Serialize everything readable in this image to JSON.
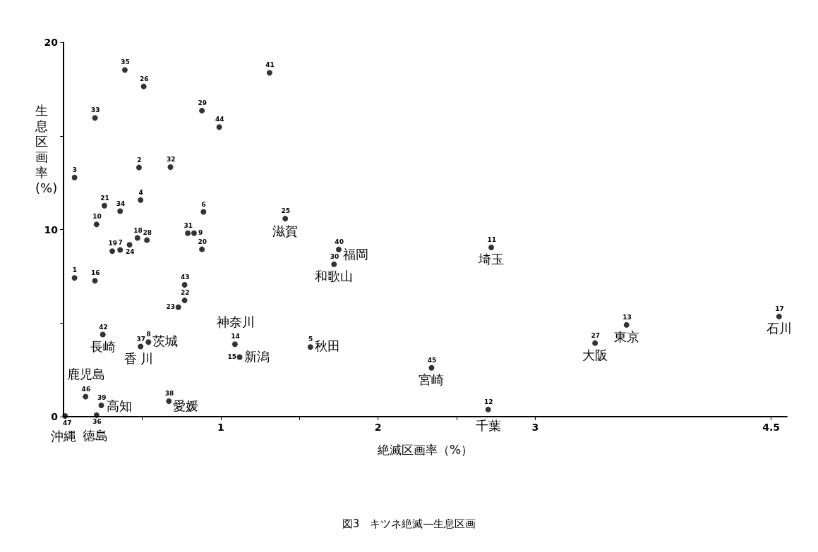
{
  "chart_data": {
    "type": "scatter",
    "xlabel": "絶滅区画率（%）",
    "ylabel": "生息区画率(%)",
    "annotations": [
      "図3　キツネ絶滅—生息区画",
      {
        "text": "35",
        "x": 0.39,
        "y": 18.52
      },
      {
        "text": "26",
        "x": 0.51,
        "y": 17.64
      },
      {
        "text": "33",
        "x": 0.2,
        "y": 15.96
      },
      {
        "text": "29",
        "x": 0.88,
        "y": 16.35
      },
      {
        "text": "44",
        "x": 0.99,
        "y": 15.47
      },
      {
        "text": "3",
        "x": 0.07,
        "y": 12.78
      },
      {
        "text": "2",
        "x": 0.48,
        "y": 13.31
      },
      {
        "text": "32",
        "x": 0.68,
        "y": 13.33
      },
      {
        "text": "4",
        "x": 0.49,
        "y": 11.57
      },
      {
        "text": "21",
        "x": 0.26,
        "y": 11.27
      },
      {
        "text": "34",
        "x": 0.36,
        "y": 10.98
      },
      {
        "text": "6",
        "x": 0.89,
        "y": 10.94
      },
      {
        "text": "10",
        "x": 0.21,
        "y": 10.27
      },
      {
        "text": "31",
        "x": 0.79,
        "y": 9.8
      },
      {
        "text": "9",
        "x": 0.83,
        "y": 9.8
      },
      {
        "text": "18",
        "x": 0.47,
        "y": 9.55
      },
      {
        "text": "28",
        "x": 0.53,
        "y": 9.43
      },
      {
        "text": "24",
        "x": 0.42,
        "y": 9.18
      },
      {
        "text": "7",
        "x": 0.36,
        "y": 8.91
      },
      {
        "text": "19",
        "x": 0.31,
        "y": 8.84
      },
      {
        "text": "20",
        "x": 0.88,
        "y": 8.94
      },
      {
        "text": "41",
        "x": 1.31,
        "y": 18.37
      },
      {
        "text": "25",
        "x": 1.41,
        "y": 10.58
      },
      {
        "text": "1",
        "x": 0.07,
        "y": 7.41
      },
      {
        "text": "16",
        "x": 0.2,
        "y": 7.26
      },
      {
        "text": "43",
        "x": 0.77,
        "y": 7.04
      },
      {
        "text": "22",
        "x": 0.77,
        "y": 6.21
      },
      {
        "text": "23",
        "x": 0.73,
        "y": 5.85
      },
      {
        "text": "42",
        "x": 0.25,
        "y": 4.39
      },
      {
        "text": "8",
        "x": 0.54,
        "y": 3.98
      },
      {
        "text": "37",
        "x": 0.49,
        "y": 3.75
      },
      {
        "text": "46",
        "x": 0.14,
        "y": 1.07
      },
      {
        "text": "38",
        "x": 0.67,
        "y": 0.83
      },
      {
        "text": "39",
        "x": 0.24,
        "y": 0.6
      },
      {
        "text": "36",
        "x": 0.21,
        "y": 0.08
      },
      {
        "text": "47",
        "x": 0.01,
        "y": 0.04
      },
      {
        "text": "40",
        "x": 1.75,
        "y": 8.93
      },
      {
        "text": "30",
        "x": 1.72,
        "y": 8.14
      },
      {
        "text": "14",
        "x": 1.09,
        "y": 3.87
      },
      {
        "text": "15",
        "x": 1.12,
        "y": 3.18
      },
      {
        "text": "5",
        "x": 1.57,
        "y": 3.72
      },
      {
        "text": "11",
        "x": 2.72,
        "y": 9.04
      },
      {
        "text": "45",
        "x": 2.34,
        "y": 2.61
      },
      {
        "text": "12",
        "x": 2.7,
        "y": 0.38
      },
      {
        "text": "27",
        "x": 3.38,
        "y": 3.93
      },
      {
        "text": "13",
        "x": 3.58,
        "y": 4.9
      },
      {
        "text": "17",
        "x": 4.55,
        "y": 5.35
      },
      {
        "text": "滋賀",
        "x": 1.41,
        "y": 10.58
      },
      {
        "text": "福岡",
        "x": 1.75,
        "y": 8.93
      },
      {
        "text": "和歌山",
        "x": 1.72,
        "y": 8.14
      },
      {
        "text": "埼玉",
        "x": 2.72,
        "y": 9.04
      },
      {
        "text": "石川",
        "x": 4.55,
        "y": 5.35
      },
      {
        "text": "大阪",
        "x": 3.38,
        "y": 3.93
      },
      {
        "text": "東京",
        "x": 3.58,
        "y": 4.9
      },
      {
        "text": "長崎",
        "x": 0.25,
        "y": 4.39
      },
      {
        "text": "茨城",
        "x": 0.54,
        "y": 3.98
      },
      {
        "text": "香 川",
        "x": 0.49,
        "y": 3.75
      },
      {
        "text": "神奈川",
        "x": 1.09,
        "y": 3.87
      },
      {
        "text": "新潟",
        "x": 1.12,
        "y": 3.18
      },
      {
        "text": "秋田",
        "x": 1.57,
        "y": 3.72
      },
      {
        "text": "宮崎",
        "x": 2.34,
        "y": 2.61
      },
      {
        "text": "鹿児島",
        "x": 0.14,
        "y": 1.07
      },
      {
        "text": "高知",
        "x": 0.24,
        "y": 0.6
      },
      {
        "text": "愛媛",
        "x": 0.67,
        "y": 0.83
      },
      {
        "text": "千葉",
        "x": 2.7,
        "y": 0.38
      },
      {
        "text": "沖縄",
        "x": 0.01,
        "y": 0.04
      },
      {
        "text": "徳島",
        "x": 0.21,
        "y": 0.08
      }
    ],
    "x": [
      0.39,
      0.51,
      0.2,
      0.88,
      0.99,
      0.07,
      0.48,
      0.68,
      0.49,
      0.26,
      0.36,
      0.89,
      0.21,
      0.79,
      0.83,
      0.47,
      0.53,
      0.42,
      0.36,
      0.31,
      0.88,
      1.31,
      1.41,
      0.07,
      0.2,
      0.77,
      0.77,
      0.73,
      0.25,
      0.54,
      0.49,
      0.14,
      0.67,
      0.24,
      0.21,
      0.01,
      1.75,
      1.72,
      1.09,
      1.12,
      1.57,
      2.72,
      2.34,
      2.7,
      3.38,
      3.58,
      4.55
    ],
    "values": [
      18.52,
      17.64,
      15.96,
      16.35,
      15.47,
      12.78,
      13.31,
      13.33,
      11.57,
      11.27,
      10.98,
      10.94,
      10.27,
      9.8,
      9.8,
      9.55,
      9.43,
      9.18,
      8.91,
      8.84,
      8.94,
      18.37,
      10.58,
      7.41,
      7.26,
      7.04,
      6.21,
      5.85,
      4.39,
      3.98,
      3.75,
      1.07,
      0.83,
      0.6,
      0.08,
      0.04,
      8.93,
      8.14,
      3.87,
      3.18,
      3.72,
      9.04,
      2.61,
      0.38,
      3.93,
      4.9,
      5.35
    ],
    "color": "#000000",
    "marker": "circle",
    "xlim": [
      0,
      4.6
    ],
    "xticks": [
      {
        "value": 0.5,
        "label": null
      },
      1,
      {
        "value": 1.5,
        "label": null
      },
      2,
      {
        "value": 2.5,
        "label": null
      },
      3,
      4.5
    ],
    "ylim": [
      0,
      20
    ],
    "yticks": [
      0,
      {
        "value": 5,
        "label": null
      },
      10,
      {
        "value": 15,
        "label": null
      },
      20
    ],
    "grid": false
  }
}
